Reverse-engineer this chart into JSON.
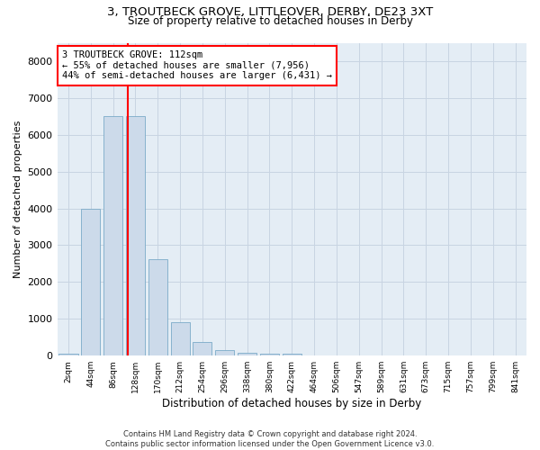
{
  "title_line1": "3, TROUTBECK GROVE, LITTLEOVER, DERBY, DE23 3XT",
  "title_line2": "Size of property relative to detached houses in Derby",
  "xlabel": "Distribution of detached houses by size in Derby",
  "ylabel": "Number of detached properties",
  "footnote": "Contains HM Land Registry data © Crown copyright and database right 2024.\nContains public sector information licensed under the Open Government Licence v3.0.",
  "bar_labels": [
    "2sqm",
    "44sqm",
    "86sqm",
    "128sqm",
    "170sqm",
    "212sqm",
    "254sqm",
    "296sqm",
    "338sqm",
    "380sqm",
    "422sqm",
    "464sqm",
    "506sqm",
    "547sqm",
    "589sqm",
    "631sqm",
    "673sqm",
    "715sqm",
    "757sqm",
    "799sqm",
    "841sqm"
  ],
  "bar_values": [
    50,
    3980,
    6500,
    6500,
    2620,
    920,
    380,
    150,
    90,
    60,
    50,
    10,
    5,
    0,
    0,
    0,
    0,
    0,
    0,
    0,
    0
  ],
  "bar_color": "#ccdaea",
  "bar_edge_color": "#7aaac8",
  "ylim": [
    0,
    8500
  ],
  "yticks": [
    0,
    1000,
    2000,
    3000,
    4000,
    5000,
    6000,
    7000,
    8000
  ],
  "vline_x_index": 2.65,
  "annotation_text": "3 TROUTBECK GROVE: 112sqm\n← 55% of detached houses are smaller (7,956)\n44% of semi-detached houses are larger (6,431) →",
  "annotation_box_color": "white",
  "annotation_box_edge_color": "red",
  "vline_color": "red",
  "grid_color": "#c8d4e2",
  "background_color": "#e4edf5"
}
